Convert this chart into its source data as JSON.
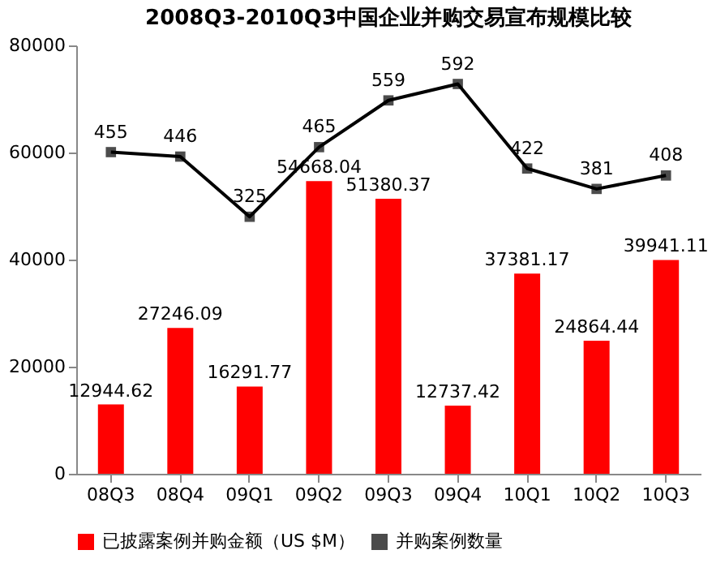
{
  "chart_data": {
    "type": "bar",
    "title": "2008Q3-2010Q3中国企业并购交易宣布规模比较",
    "categories": [
      "08Q3",
      "08Q4",
      "09Q1",
      "09Q2",
      "09Q3",
      "09Q4",
      "10Q1",
      "10Q2",
      "10Q3"
    ],
    "series": [
      {
        "name": "已披露案例并购金额（US $M）",
        "color": "#ff0000",
        "values": [
          12944.62,
          27246.09,
          16291.77,
          54668.04,
          51380.37,
          12737.42,
          37381.17,
          24864.44,
          39941.11
        ]
      },
      {
        "name": "并购案例数量",
        "type": "line",
        "axis": "y2",
        "color": "#000000",
        "marker": "square",
        "values": [
          455,
          446,
          325,
          465,
          559,
          592,
          422,
          381,
          408
        ]
      }
    ],
    "ylim": [
      0,
      80000
    ],
    "yticks": [
      0,
      20000,
      40000,
      60000,
      80000
    ],
    "data_labels": true,
    "legend": "bottom",
    "grid": false
  }
}
